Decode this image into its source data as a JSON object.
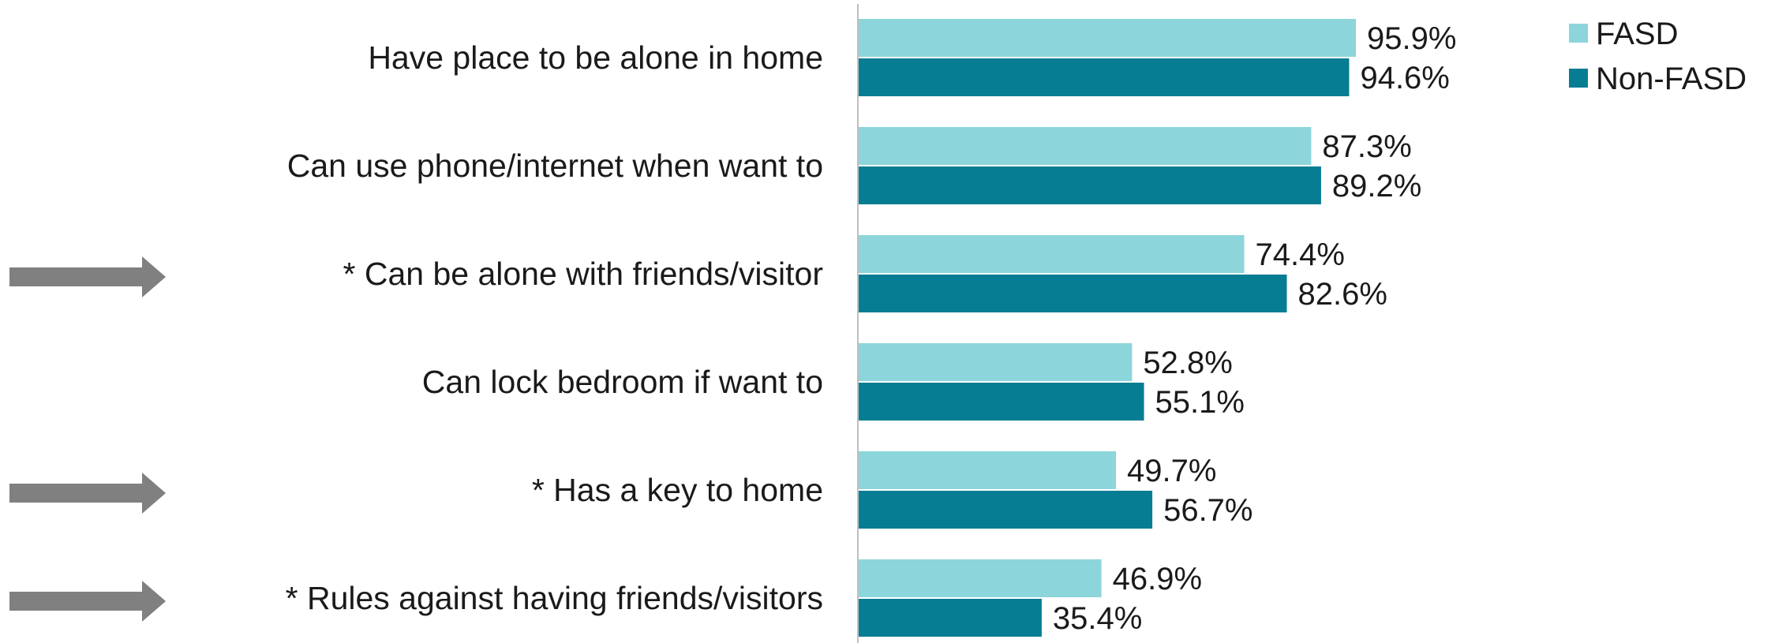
{
  "chart_data": {
    "type": "bar",
    "orientation": "horizontal",
    "categories": [
      "Have place to be alone in home",
      "Can use phone/internet when want to",
      "* Can be alone with friends/visitor",
      "Can lock bedroom if want to",
      "* Has a key to home",
      "* Rules against having friends/visitors"
    ],
    "series": [
      {
        "name": "FASD",
        "values": [
          95.9,
          87.3,
          74.4,
          52.8,
          49.7,
          46.9
        ],
        "labels": [
          "95.9%",
          "87.3%",
          "74.4%",
          "52.8%",
          "49.7%",
          "46.9%"
        ],
        "color": "#8CD5DB"
      },
      {
        "name": "Non-FASD",
        "values": [
          94.6,
          89.2,
          82.6,
          55.1,
          56.7,
          35.4
        ],
        "labels": [
          "94.6%",
          "89.2%",
          "82.6%",
          "55.1%",
          "56.7%",
          "35.4%"
        ],
        "color": "#067D93"
      }
    ],
    "xlim": [
      0,
      100
    ],
    "grid": false,
    "legend_position": "top-right",
    "highlighted_categories": [
      2,
      4,
      5
    ],
    "arrow_color": "#808080",
    "axis_color": "#BFBFBF"
  }
}
